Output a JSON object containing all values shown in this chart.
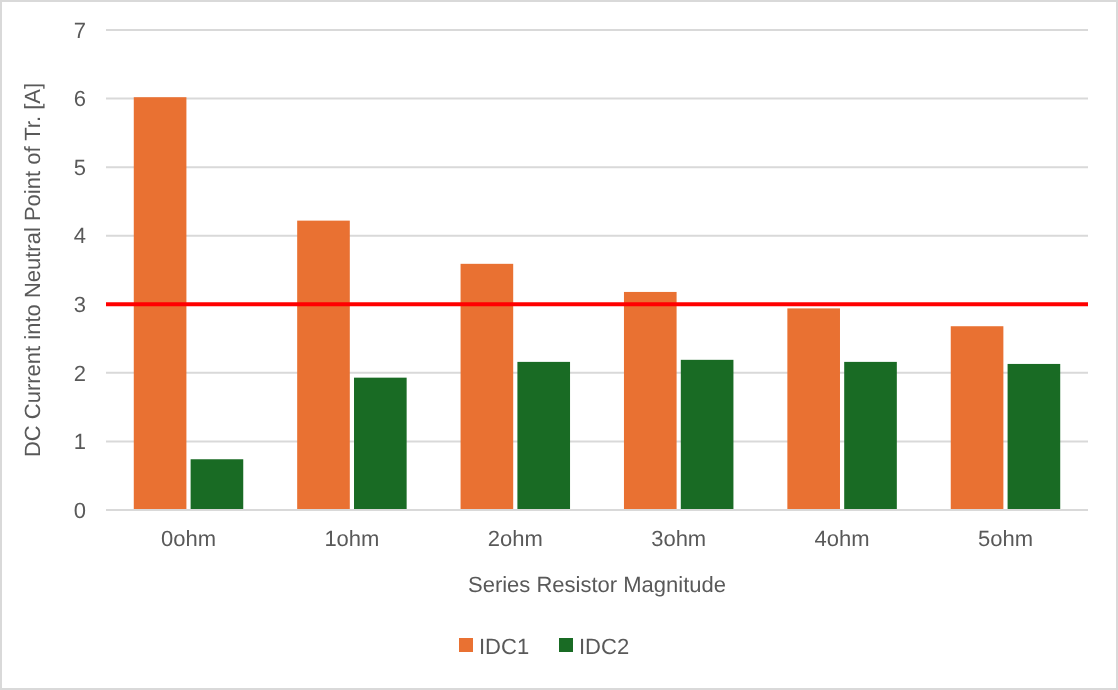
{
  "chart_data": {
    "type": "bar",
    "xlabel": "Series Resistor Magnitude",
    "ylabel": "DC Current into Neutral  Point of Tr. [A]",
    "categories": [
      "0ohm",
      "1ohm",
      "2ohm",
      "3ohm",
      "4ohm",
      "5ohm"
    ],
    "series": [
      {
        "name": "IDC1",
        "color": "#e97132",
        "values": [
          6.02,
          4.22,
          3.59,
          3.18,
          2.94,
          2.68
        ]
      },
      {
        "name": "IDC2",
        "color": "#196b24",
        "values": [
          0.74,
          1.93,
          2.16,
          2.19,
          2.16,
          2.13
        ]
      }
    ],
    "ylim": [
      0,
      7
    ],
    "yticks": [
      0,
      1,
      2,
      3,
      4,
      5,
      6,
      7
    ],
    "grid": "y",
    "legend": "bottom",
    "ref_lines": [
      {
        "axis": "y",
        "value": 3,
        "color": "#ff0000"
      }
    ]
  }
}
